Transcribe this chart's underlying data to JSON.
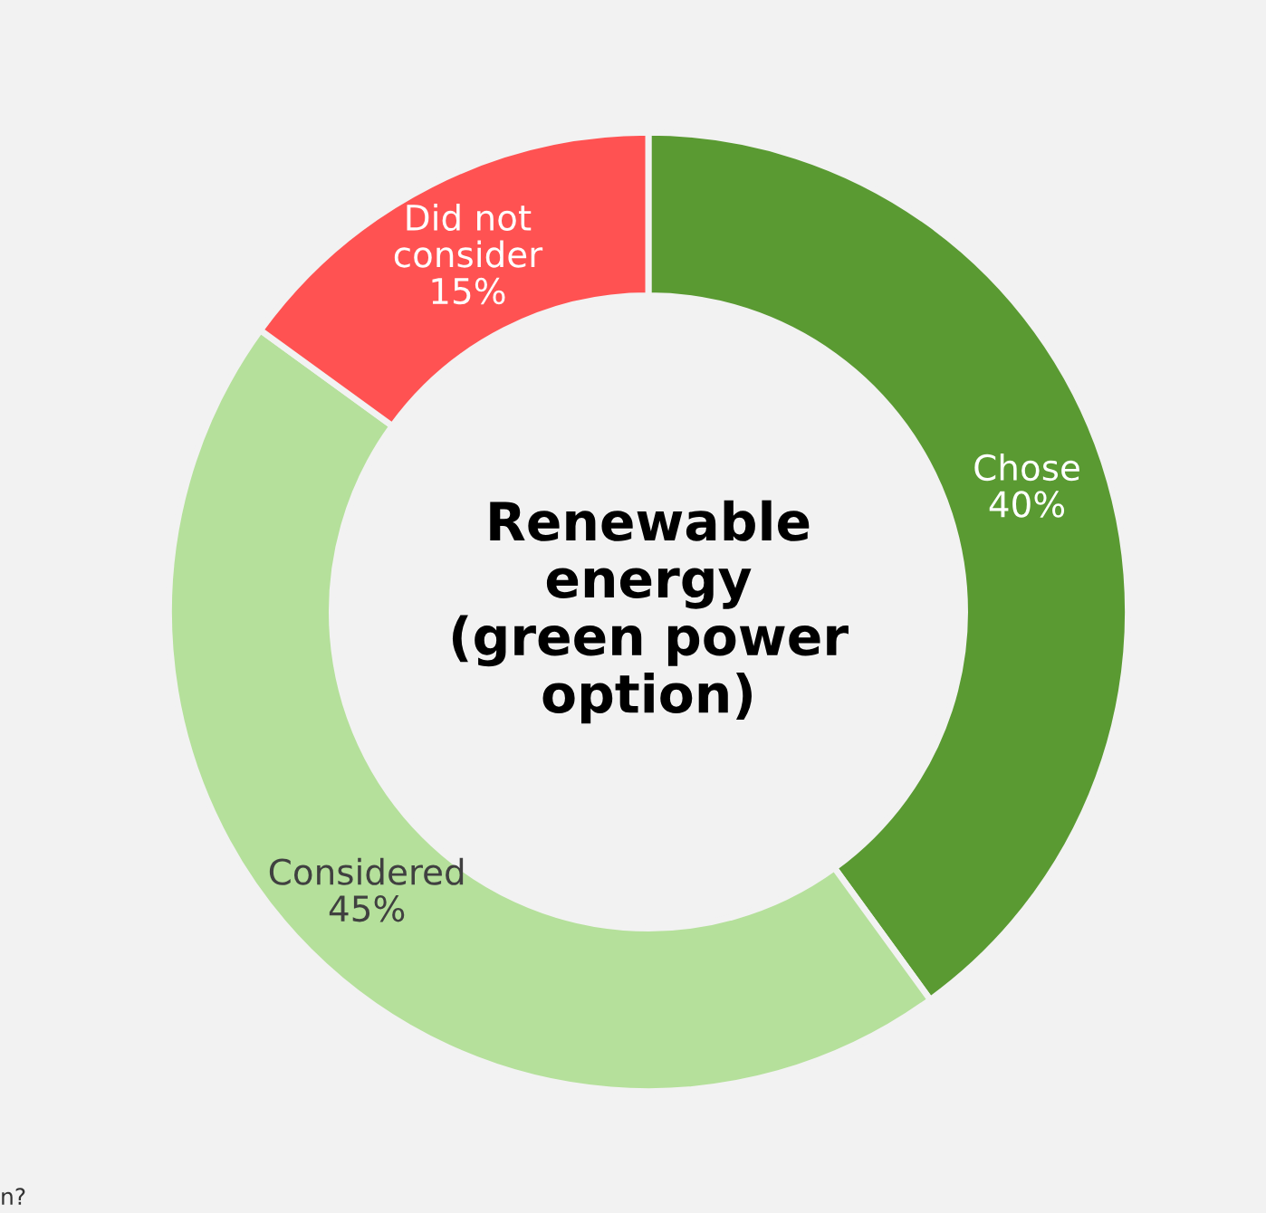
{
  "chart_data": {
    "type": "donut",
    "title": "Renewable\nenergy\n(green power\noption)",
    "categories": [
      "Chose",
      "Considered",
      "Did not\nconsider"
    ],
    "values": [
      40,
      45,
      15
    ],
    "colors": [
      "#5a9a32",
      "#b5e09b",
      "#ff5252"
    ],
    "value_labels": [
      "40%",
      "45%",
      "15%"
    ],
    "annotations": [
      "n?"
    ]
  }
}
